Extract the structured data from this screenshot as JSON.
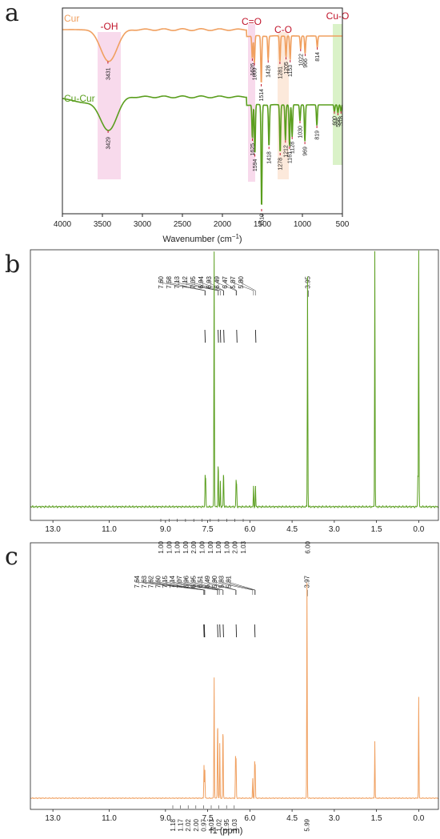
{
  "panels": {
    "a": "a",
    "b": "b",
    "c": "c"
  },
  "colors": {
    "orange": "#f0a060",
    "green": "#5a9e1e",
    "red": "#c0142a",
    "pink": "#f6cde6",
    "peach": "#fbe1cf",
    "lightgreen": "#cdeeb5"
  },
  "chart_data": [
    {
      "type": "line",
      "xlabel": "Wavenumber (cm",
      "xlabel_sup": "−1",
      "xlabel_tail": ")",
      "xlim": [
        4000,
        500
      ],
      "x_ticks": [
        "4000",
        "3500",
        "3000",
        "2500",
        "2000",
        "1500",
        "1000",
        "500"
      ],
      "bands": [
        {
          "label": "-OH",
          "x": [
            3560,
            3270
          ],
          "color": "pink"
        },
        {
          "label": "C=O",
          "x": [
            1680,
            1590
          ],
          "color": "pink"
        },
        {
          "label": "C-O",
          "x": [
            1310,
            1170
          ],
          "color": "peach"
        },
        {
          "label": "Cu-O",
          "x": [
            620,
            500
          ],
          "color": "lightgreen"
        }
      ],
      "series": [
        {
          "name": "Cur",
          "color": "orange",
          "peaks": [
            "3431",
            "1626",
            "1600",
            "1514",
            "1428",
            "1281",
            "1205",
            "1153",
            "1022",
            "966",
            "814"
          ],
          "peak_x": [
            3431,
            1626,
            1600,
            1514,
            1428,
            1281,
            1205,
            1153,
            1022,
            966,
            814
          ]
        },
        {
          "name": "Cu-Cur",
          "color": "green",
          "peaks": [
            "3429",
            "1625",
            "1594",
            "1510",
            "1418",
            "1278",
            "1212",
            "1161",
            "1128",
            "1030",
            "969",
            "819",
            "600",
            "556",
            "518"
          ],
          "peak_x": [
            3429,
            1625,
            1594,
            1510,
            1418,
            1278,
            1212,
            1161,
            1128,
            1030,
            969,
            819,
            600,
            556,
            518
          ]
        }
      ]
    },
    {
      "type": "line",
      "color": "green",
      "xlim": [
        13.8,
        -0.7
      ],
      "x_ticks": [
        "13.0",
        "11.0",
        "9.0",
        "7.5",
        "6.0",
        "4.5",
        "3.0",
        "1.5",
        "0.0"
      ],
      "x_tick_values": [
        13.0,
        11.0,
        9.0,
        7.5,
        6.0,
        4.5,
        3.0,
        1.5,
        0.0
      ],
      "shifts": [
        "7.60",
        "7.58",
        "7.13",
        "7.12",
        "7.05",
        "6.94",
        "6.93",
        "6.49",
        "6.47",
        "5.87",
        "5.80"
      ],
      "shift_right": "3.95",
      "integrals": [
        "1.00",
        "1.00",
        "1.00",
        "1.00",
        "2.00",
        "1.00",
        "1.00",
        "1.00",
        "1.00",
        "2.00",
        "1.03"
      ],
      "integral_right": "6.00",
      "peaks": [
        {
          "x": 7.59,
          "h": 0.12
        },
        {
          "x": 7.57,
          "h": 0.1
        },
        {
          "x": 7.27,
          "h": 1.0
        },
        {
          "x": 7.13,
          "h": 0.12
        },
        {
          "x": 7.12,
          "h": 0.08
        },
        {
          "x": 7.05,
          "h": 0.1
        },
        {
          "x": 6.94,
          "h": 0.09
        },
        {
          "x": 6.93,
          "h": 0.07
        },
        {
          "x": 6.49,
          "h": 0.1
        },
        {
          "x": 6.47,
          "h": 0.08
        },
        {
          "x": 5.87,
          "h": 0.08
        },
        {
          "x": 5.8,
          "h": 0.08
        },
        {
          "x": 3.95,
          "h": 0.9
        },
        {
          "x": 1.56,
          "h": 1.0
        },
        {
          "x": 0.0,
          "h": 1.0
        },
        {
          "x": 0.03,
          "h": 0.12
        }
      ]
    },
    {
      "type": "line",
      "color": "orange",
      "xlabel": "f1 (ppm)",
      "xlim": [
        13.8,
        -0.7
      ],
      "x_ticks": [
        "13.0",
        "11.0",
        "9.0",
        "7.5",
        "6.0",
        "4.5",
        "3.0",
        "1.5",
        "0.0"
      ],
      "x_tick_values": [
        13.0,
        11.0,
        9.0,
        7.5,
        6.0,
        4.5,
        3.0,
        1.5,
        0.0
      ],
      "shifts": [
        "7.64",
        "7.63",
        "7.62",
        "7.60",
        "7.15",
        "7.14",
        "7.07",
        "6.96",
        "6.95",
        "6.51",
        "6.49",
        "5.90",
        "5.83",
        "5.81"
      ],
      "shift_right": "3.97",
      "integrals": [
        "1.18",
        "1.17",
        "2.02",
        "2.00",
        "0.97",
        "1.01",
        "1.02",
        "1.95",
        "1.03"
      ],
      "integral_right": "5.99",
      "peaks": [
        {
          "x": 7.63,
          "h": 0.15
        },
        {
          "x": 7.6,
          "h": 0.13
        },
        {
          "x": 7.27,
          "h": 0.55
        },
        {
          "x": 7.15,
          "h": 0.2
        },
        {
          "x": 7.14,
          "h": 0.22
        },
        {
          "x": 7.07,
          "h": 0.25
        },
        {
          "x": 6.96,
          "h": 0.2
        },
        {
          "x": 6.95,
          "h": 0.18
        },
        {
          "x": 6.51,
          "h": 0.18
        },
        {
          "x": 6.49,
          "h": 0.17
        },
        {
          "x": 5.9,
          "h": 0.09
        },
        {
          "x": 5.83,
          "h": 0.16
        },
        {
          "x": 5.81,
          "h": 0.14
        },
        {
          "x": 3.97,
          "h": 0.98
        },
        {
          "x": 1.56,
          "h": 0.26
        },
        {
          "x": 0.0,
          "h": 0.46
        }
      ]
    }
  ]
}
